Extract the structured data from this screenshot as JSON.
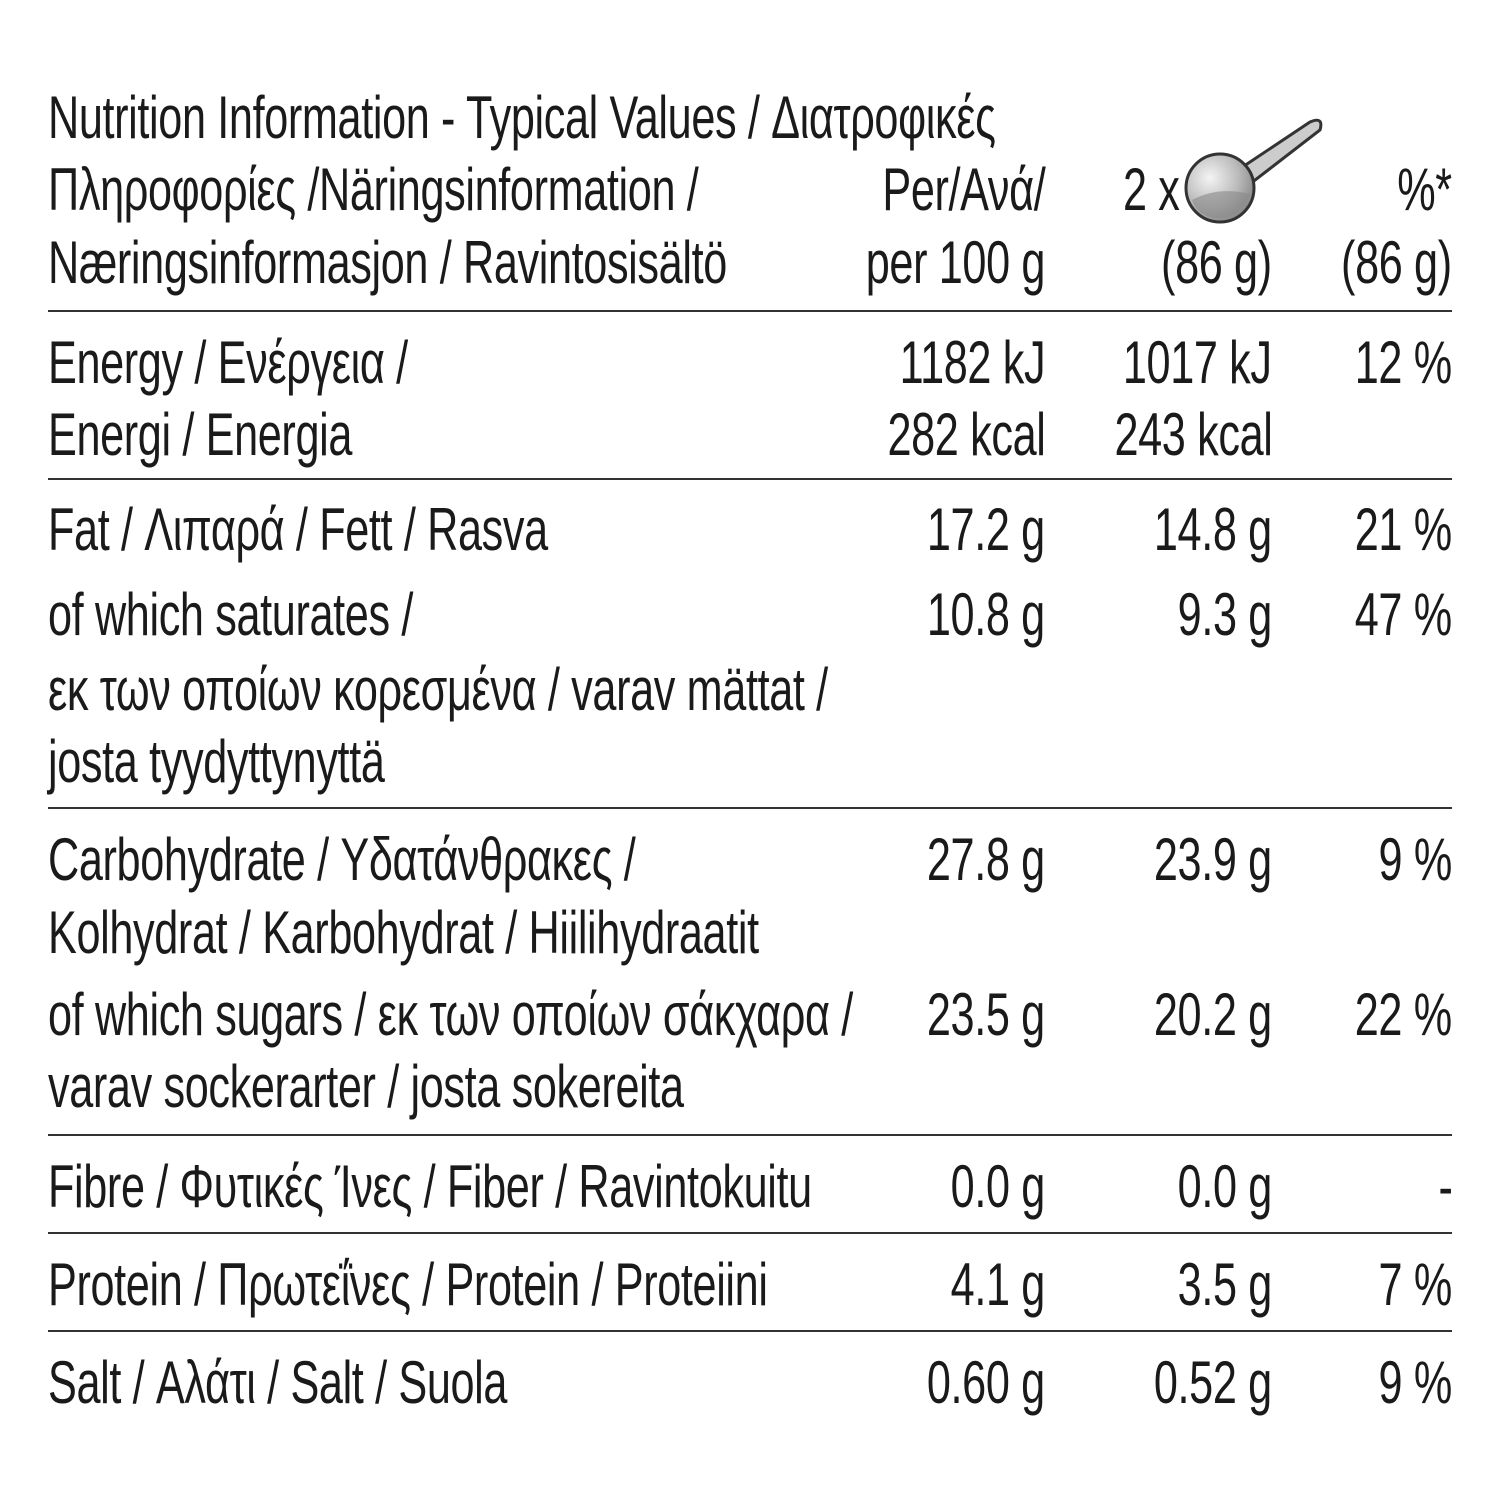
{
  "header": {
    "title_lines": [
      "Nutrition Information - Typical Values / Διατροφικές",
      "Πληροφορίες /Näringsinformation /",
      "Næringsinformasjon / Ravintosisältö"
    ],
    "col_per100": [
      "Per/Ανά/",
      "per 100 g"
    ],
    "col_serving": [
      "2 x",
      "(86 g)"
    ],
    "col_ri": [
      "%*",
      "(86 g)"
    ],
    "serving_icon": "scoop-icon"
  },
  "nutrients": [
    {
      "id": "energy",
      "label_lines": [
        "Energy / Ενέργεια /",
        "Energi / Energia"
      ],
      "per100": [
        "1182 kJ",
        "282 kcal"
      ],
      "serving": [
        "1017 kJ",
        "243 kcal"
      ],
      "ri": [
        "12 %"
      ]
    },
    {
      "id": "fat",
      "label_lines": [
        "Fat / Λιπαρά / Fett / Rasva"
      ],
      "per100": [
        "17.2 g"
      ],
      "serving": [
        "14.8 g"
      ],
      "ri": [
        "21 %"
      ]
    },
    {
      "id": "saturates",
      "label_lines": [
        "of which saturates /",
        "εκ των οποίων κορεσμένα / varav mättat /",
        "josta tyydyttynyttä"
      ],
      "per100": [
        "10.8 g"
      ],
      "serving": [
        "9.3 g"
      ],
      "ri": [
        "47 %"
      ]
    },
    {
      "id": "carbohydrate",
      "label_lines": [
        "Carbohydrate / Υδατάνθρακες /",
        "Kolhydrat / Karbohydrat / Hiilihydraatit"
      ],
      "per100": [
        "27.8 g"
      ],
      "serving": [
        "23.9 g"
      ],
      "ri": [
        "9 %"
      ]
    },
    {
      "id": "sugars",
      "label_lines": [
        "of which sugars / εκ των οποίων σάκχαρα /",
        "varav sockerarter / josta sokereita"
      ],
      "per100": [
        "23.5 g"
      ],
      "serving": [
        "20.2 g"
      ],
      "ri": [
        "22 %"
      ]
    },
    {
      "id": "fibre",
      "label_lines": [
        "Fibre / Φυτικές Ίνες / Fiber / Ravintokuitu"
      ],
      "per100": [
        "0.0 g"
      ],
      "serving": [
        "0.0 g"
      ],
      "ri": [
        "-"
      ]
    },
    {
      "id": "protein",
      "label_lines": [
        "Protein / Πρωτεΐνες / Protein / Proteiini"
      ],
      "per100": [
        "4.1 g"
      ],
      "serving": [
        "3.5 g"
      ],
      "ri": [
        "7 %"
      ]
    },
    {
      "id": "salt",
      "label_lines": [
        "Salt / Αλάτι / Salt / Suola"
      ],
      "per100": [
        "0.60 g"
      ],
      "serving": [
        "0.52 g"
      ],
      "ri": [
        "9 %"
      ]
    }
  ]
}
